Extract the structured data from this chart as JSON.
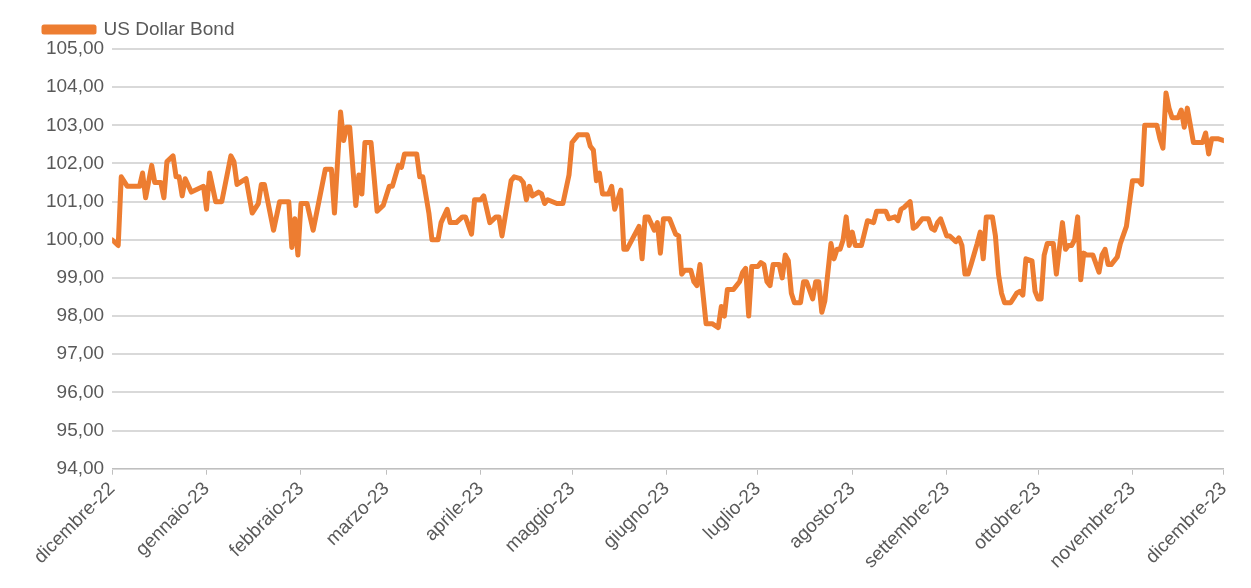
{
  "chart_data": {
    "type": "line",
    "legend": "top left",
    "grid": "y",
    "marker": "none",
    "line_style": "solid",
    "xlim": [
      "2022-12-01",
      "2023-12-01"
    ],
    "xticks": [
      {
        "value": "2022-12-01",
        "label": "dicembre-22"
      },
      {
        "value": "2023-01-01",
        "label": "gennaio-23"
      },
      {
        "value": "2023-02-01",
        "label": "febbraio-23"
      },
      {
        "value": "2023-03-01",
        "label": "marzo-23"
      },
      {
        "value": "2023-04-01",
        "label": "aprile-23"
      },
      {
        "value": "2023-05-01",
        "label": "maggio-23"
      },
      {
        "value": "2023-06-01",
        "label": "giugno-23"
      },
      {
        "value": "2023-07-01",
        "label": "luglio-23"
      },
      {
        "value": "2023-08-01",
        "label": "agosto-23"
      },
      {
        "value": "2023-09-01",
        "label": "settembre-23"
      },
      {
        "value": "2023-10-01",
        "label": "ottobre-23"
      },
      {
        "value": "2023-11-01",
        "label": "novembre-23"
      },
      {
        "value": "2023-12-01",
        "label": "dicembre-23"
      }
    ],
    "ylim": [
      94,
      105
    ],
    "yticks": [
      {
        "value": 94,
        "label": "94,00"
      },
      {
        "value": 95,
        "label": "95,00"
      },
      {
        "value": 96,
        "label": "96,00"
      },
      {
        "value": 97,
        "label": "97,00"
      },
      {
        "value": 98,
        "label": "98,00"
      },
      {
        "value": 99,
        "label": "99,00"
      },
      {
        "value": 100,
        "label": "100,00"
      },
      {
        "value": 101,
        "label": "101,00"
      },
      {
        "value": 102,
        "label": "102,00"
      },
      {
        "value": 103,
        "label": "103,00"
      },
      {
        "value": 104,
        "label": "104,00"
      },
      {
        "value": 105,
        "label": "105,00"
      }
    ],
    "x": [
      "2022-12-01",
      "2022-12-03",
      "2022-12-04",
      "2022-12-06",
      "2022-12-10",
      "2022-12-11",
      "2022-12-12",
      "2022-12-14",
      "2022-12-15",
      "2022-12-17",
      "2022-12-18",
      "2022-12-19",
      "2022-12-21",
      "2022-12-22",
      "2022-12-23",
      "2022-12-24",
      "2022-12-25",
      "2022-12-27",
      "2022-12-31",
      "2023-01-01",
      "2023-01-02",
      "2023-01-04",
      "2023-01-06",
      "2023-01-09",
      "2023-01-10",
      "2023-01-11",
      "2023-01-14",
      "2023-01-16",
      "2023-01-18",
      "2023-01-19",
      "2023-01-20",
      "2023-01-23",
      "2023-01-25",
      "2023-01-28",
      "2023-01-29",
      "2023-01-30",
      "2023-01-31",
      "2023-02-01",
      "2023-02-03",
      "2023-02-05",
      "2023-02-07",
      "2023-02-09",
      "2023-02-11",
      "2023-02-12",
      "2023-02-14",
      "2023-02-15",
      "2023-02-16",
      "2023-02-17",
      "2023-02-19",
      "2023-02-20",
      "2023-02-21",
      "2023-02-22",
      "2023-02-24",
      "2023-02-26",
      "2023-02-28",
      "2023-03-02",
      "2023-03-03",
      "2023-03-05",
      "2023-03-06",
      "2023-03-07",
      "2023-03-11",
      "2023-03-12",
      "2023-03-13",
      "2023-03-15",
      "2023-03-16",
      "2023-03-18",
      "2023-03-19",
      "2023-03-21",
      "2023-03-22",
      "2023-03-24",
      "2023-03-26",
      "2023-03-27",
      "2023-03-29",
      "2023-03-30",
      "2023-04-01",
      "2023-04-02",
      "2023-04-04",
      "2023-04-06",
      "2023-04-07",
      "2023-04-08",
      "2023-04-11",
      "2023-04-12",
      "2023-04-14",
      "2023-04-15",
      "2023-04-16",
      "2023-04-17",
      "2023-04-18",
      "2023-04-20",
      "2023-04-21",
      "2023-04-22",
      "2023-04-23",
      "2023-04-26",
      "2023-04-28",
      "2023-04-30",
      "2023-05-01",
      "2023-05-03",
      "2023-05-06",
      "2023-05-07",
      "2023-05-08",
      "2023-05-09",
      "2023-05-10",
      "2023-05-11",
      "2023-05-13",
      "2023-05-14",
      "2023-05-15",
      "2023-05-17",
      "2023-05-18",
      "2023-05-19",
      "2023-05-22",
      "2023-05-23",
      "2023-05-24",
      "2023-05-25",
      "2023-05-26",
      "2023-05-28",
      "2023-05-29",
      "2023-05-30",
      "2023-05-31",
      "2023-06-02",
      "2023-06-04",
      "2023-06-05",
      "2023-06-06",
      "2023-06-07",
      "2023-06-09",
      "2023-06-10",
      "2023-06-11",
      "2023-06-12",
      "2023-06-14",
      "2023-06-16",
      "2023-06-18",
      "2023-06-19",
      "2023-06-20",
      "2023-06-21",
      "2023-06-23",
      "2023-06-25",
      "2023-06-26",
      "2023-06-27",
      "2023-06-28",
      "2023-06-29",
      "2023-07-01",
      "2023-07-02",
      "2023-07-03",
      "2023-07-04",
      "2023-07-05",
      "2023-07-06",
      "2023-07-08",
      "2023-07-09",
      "2023-07-10",
      "2023-07-11",
      "2023-07-12",
      "2023-07-13",
      "2023-07-15",
      "2023-07-16",
      "2023-07-17",
      "2023-07-19",
      "2023-07-20",
      "2023-07-21",
      "2023-07-22",
      "2023-07-23",
      "2023-07-25",
      "2023-07-26",
      "2023-07-27",
      "2023-07-28",
      "2023-07-29",
      "2023-07-30",
      "2023-07-31",
      "2023-08-01",
      "2023-08-02",
      "2023-08-04",
      "2023-08-06",
      "2023-08-08",
      "2023-08-09",
      "2023-08-12",
      "2023-08-13",
      "2023-08-15",
      "2023-08-16",
      "2023-08-17",
      "2023-08-18",
      "2023-08-20",
      "2023-08-21",
      "2023-08-22",
      "2023-08-24",
      "2023-08-26",
      "2023-08-27",
      "2023-08-28",
      "2023-08-29",
      "2023-08-30",
      "2023-09-01",
      "2023-09-02",
      "2023-09-04",
      "2023-09-05",
      "2023-09-06",
      "2023-09-07",
      "2023-09-08",
      "2023-09-09",
      "2023-09-11",
      "2023-09-12",
      "2023-09-13",
      "2023-09-14",
      "2023-09-16",
      "2023-09-17",
      "2023-09-18",
      "2023-09-19",
      "2023-09-20",
      "2023-09-22",
      "2023-09-24",
      "2023-09-25",
      "2023-09-26",
      "2023-09-27",
      "2023-09-29",
      "2023-09-30",
      "2023-10-01",
      "2023-10-02",
      "2023-10-03",
      "2023-10-04",
      "2023-10-06",
      "2023-10-07",
      "2023-10-09",
      "2023-10-10",
      "2023-10-11",
      "2023-10-12",
      "2023-10-13",
      "2023-10-14",
      "2023-10-15",
      "2023-10-16",
      "2023-10-17",
      "2023-10-19",
      "2023-10-21",
      "2023-10-22",
      "2023-10-23",
      "2023-10-24",
      "2023-10-25",
      "2023-10-27",
      "2023-10-28",
      "2023-10-30",
      "2023-11-01",
      "2023-11-03",
      "2023-11-04",
      "2023-11-05",
      "2023-11-09",
      "2023-11-10",
      "2023-11-11",
      "2023-11-12",
      "2023-11-13",
      "2023-11-14",
      "2023-11-16",
      "2023-11-17",
      "2023-11-18",
      "2023-11-19",
      "2023-11-21",
      "2023-11-24",
      "2023-11-25",
      "2023-11-26",
      "2023-11-27",
      "2023-11-29",
      "2023-12-01"
    ],
    "series": [
      {
        "name": "US Dollar Bond",
        "color": "#ed7d31",
        "values": [
          100.0,
          99.85,
          101.65,
          101.4,
          101.4,
          101.75,
          101.1,
          101.95,
          101.5,
          101.5,
          101.1,
          102.05,
          102.2,
          101.65,
          101.65,
          101.15,
          101.6,
          101.25,
          101.4,
          100.8,
          101.75,
          101.0,
          101.0,
          102.2,
          102.05,
          101.45,
          101.6,
          100.7,
          100.95,
          101.45,
          101.45,
          100.25,
          101.0,
          101.0,
          99.8,
          100.55,
          99.6,
          100.95,
          100.95,
          100.25,
          101.05,
          101.85,
          101.85,
          100.7,
          103.35,
          102.6,
          102.95,
          102.95,
          100.9,
          101.7,
          101.2,
          102.55,
          102.55,
          100.75,
          100.9,
          101.4,
          101.4,
          101.95,
          101.9,
          102.25,
          102.25,
          101.65,
          101.65,
          100.7,
          100.0,
          100.0,
          100.45,
          100.8,
          100.45,
          100.45,
          100.6,
          100.6,
          100.15,
          101.05,
          101.05,
          101.15,
          100.45,
          100.6,
          100.6,
          100.1,
          101.55,
          101.65,
          101.6,
          101.5,
          101.05,
          101.4,
          101.15,
          101.25,
          101.2,
          100.95,
          101.05,
          100.95,
          100.95,
          101.7,
          102.55,
          102.75,
          102.75,
          102.45,
          102.35,
          101.55,
          101.75,
          101.2,
          101.2,
          101.4,
          100.8,
          101.3,
          99.75,
          99.75,
          100.2,
          100.35,
          99.5,
          100.6,
          100.6,
          100.25,
          100.45,
          99.65,
          100.55,
          100.55,
          100.15,
          100.1,
          99.1,
          99.2,
          99.2,
          98.9,
          98.8,
          99.35,
          97.8,
          97.8,
          97.7,
          98.25,
          98.0,
          98.7,
          98.7,
          98.9,
          99.15,
          99.25,
          98.0,
          99.3,
          99.3,
          99.4,
          99.35,
          98.9,
          98.8,
          99.35,
          99.35,
          99.0,
          99.6,
          99.45,
          98.6,
          98.35,
          98.35,
          98.9,
          98.9,
          98.45,
          98.9,
          98.9,
          98.1,
          98.4,
          99.9,
          99.5,
          99.75,
          99.75,
          100.0,
          100.6,
          99.85,
          100.2,
          99.85,
          99.85,
          100.5,
          100.45,
          100.75,
          100.75,
          100.55,
          100.6,
          100.5,
          100.8,
          100.85,
          101.0,
          100.3,
          100.35,
          100.55,
          100.55,
          100.3,
          100.25,
          100.45,
          100.55,
          100.1,
          100.1,
          99.95,
          100.05,
          99.85,
          99.1,
          99.1,
          99.35,
          99.9,
          100.2,
          99.5,
          100.6,
          100.6,
          100.1,
          99.1,
          98.6,
          98.35,
          98.35,
          98.6,
          98.65,
          98.55,
          99.5,
          99.45,
          98.65,
          98.45,
          98.45,
          99.6,
          99.9,
          99.9,
          99.1,
          100.45,
          99.75,
          99.85,
          99.85,
          100.0,
          100.6,
          98.95,
          99.65,
          99.6,
          99.6,
          99.15,
          99.6,
          99.75,
          99.35,
          99.35,
          99.55,
          99.9,
          100.35,
          101.55,
          101.55,
          101.45,
          103.0,
          103.0,
          102.65,
          102.4,
          103.85,
          103.45,
          103.2,
          103.2,
          103.4,
          102.95,
          103.45,
          102.55,
          102.55,
          102.8,
          102.25,
          102.65,
          102.65,
          102.6
        ]
      }
    ]
  }
}
